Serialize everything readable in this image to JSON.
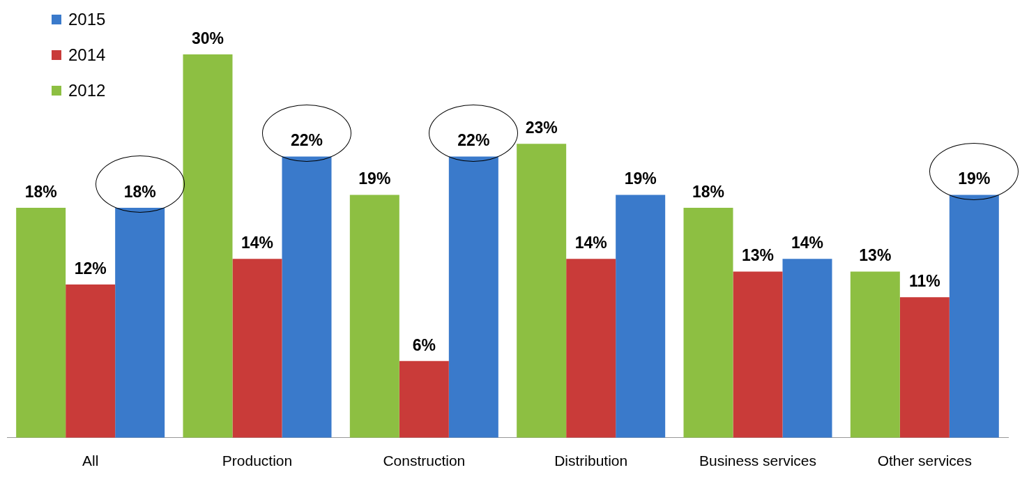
{
  "chart_data": {
    "type": "bar",
    "categories": [
      "All",
      "Production",
      "Construction",
      "Distribution",
      "Business services",
      "Other services"
    ],
    "series": [
      {
        "name": "2012",
        "color": "#8dbf42",
        "values": [
          18,
          30,
          19,
          23,
          18,
          13
        ],
        "value_labels": [
          "18%",
          "30%",
          "19%",
          "23%",
          "18%",
          "13%"
        ]
      },
      {
        "name": "2014",
        "color": "#c93b39",
        "values": [
          12,
          14,
          6,
          14,
          13,
          11
        ],
        "value_labels": [
          "12%",
          "14%",
          "6%",
          "14%",
          "13%",
          "11%"
        ]
      },
      {
        "name": "2015",
        "color": "#3a7acb",
        "values": [
          18,
          22,
          22,
          19,
          14,
          19
        ],
        "value_labels": [
          "18%",
          "22%",
          "22%",
          "19%",
          "14%",
          "19%"
        ]
      }
    ],
    "tick_labels": "x",
    "grid": false,
    "legend": "top left"
  }
}
